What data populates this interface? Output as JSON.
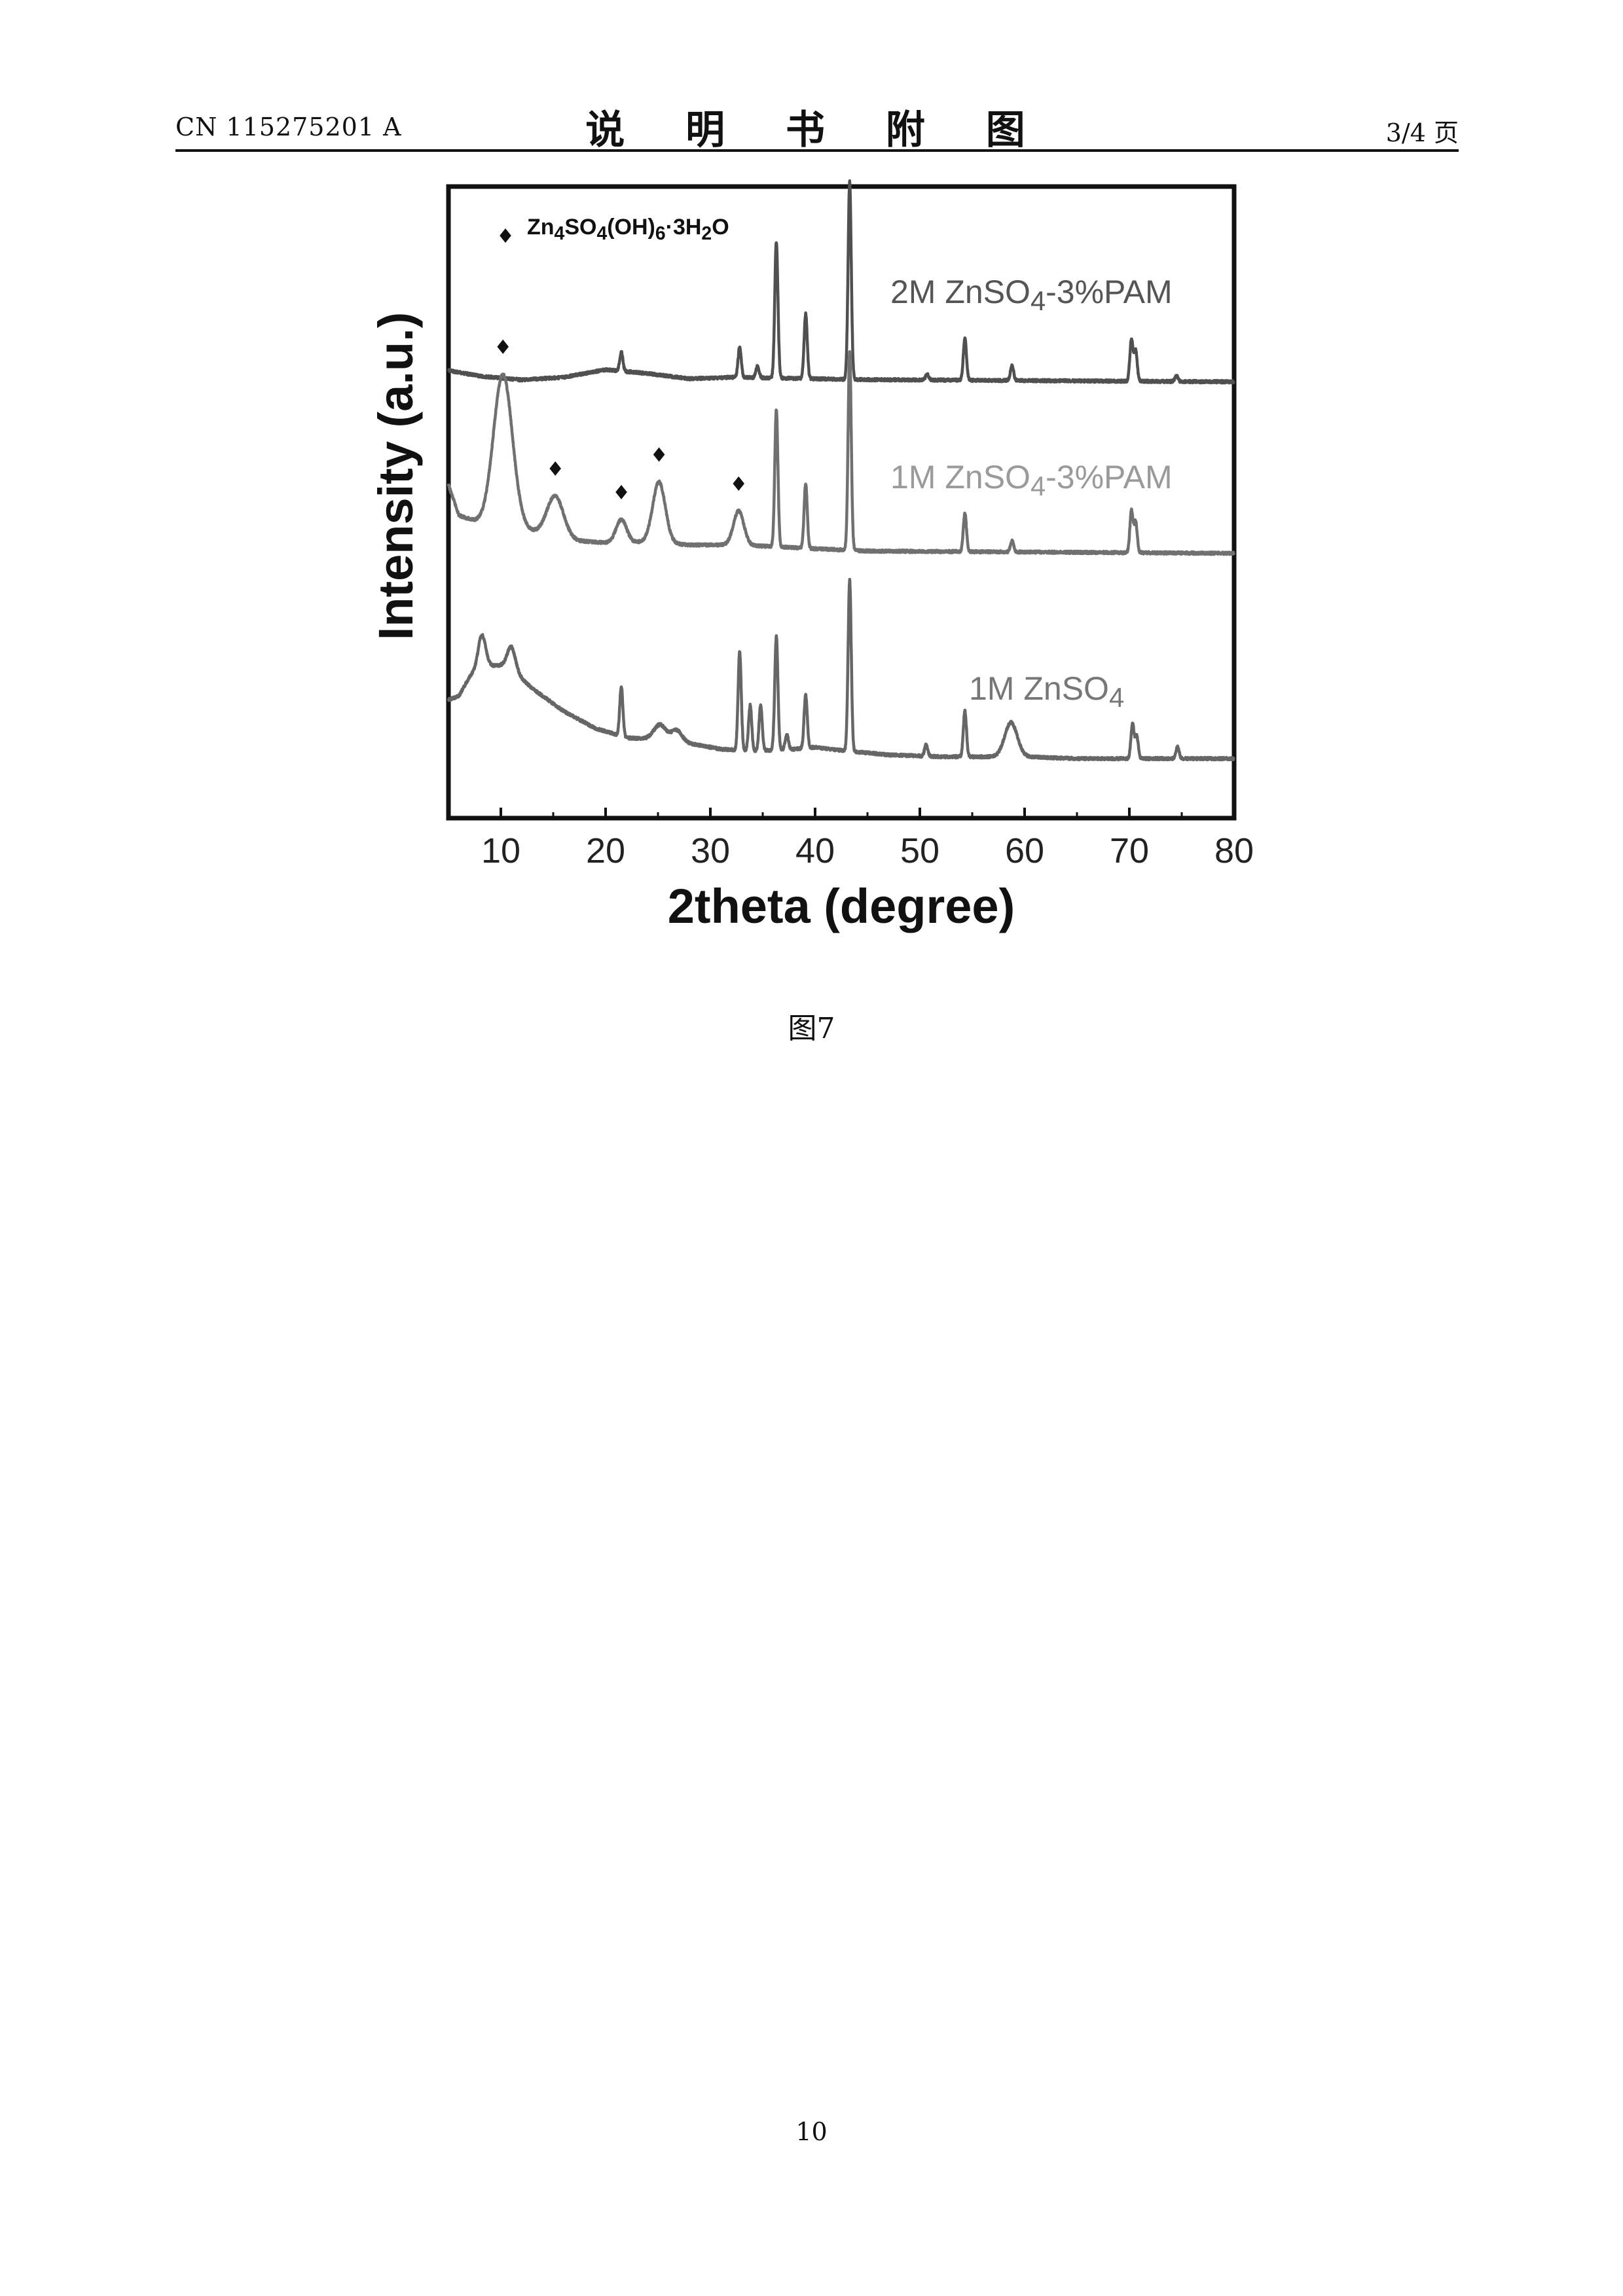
{
  "header": {
    "patent_no": "CN 115275201 A",
    "section_title": "说 明 书 附 图",
    "page_of": "3/4 页"
  },
  "figure": {
    "caption": "图7"
  },
  "footer": {
    "page_number": "10"
  },
  "chart_data": {
    "type": "line",
    "xlabel": "2theta (degree)",
    "ylabel": "Intensity (a.u.)",
    "xlim": [
      5,
      80
    ],
    "xticks": [
      10,
      20,
      30,
      40,
      50,
      60,
      70,
      80
    ],
    "yticks": [],
    "grid": false,
    "legend": {
      "placement": "top-left",
      "marker": "diamond",
      "label_html": "Zn<sub>4</sub>SO<sub>4</sub>(OH)<sub>6</sub>·3H<sub>2</sub>O"
    },
    "series": [
      {
        "name_html": "2M ZnSO<sub>4</sub>-3%PAM",
        "label_color": "#555555",
        "line_color": "#505050",
        "baseline": 0.2,
        "background": [
          [
            5,
            0.3
          ],
          [
            8,
            0.15
          ],
          [
            12,
            0.05
          ],
          [
            16,
            0.12
          ],
          [
            20,
            0.32
          ],
          [
            24,
            0.22
          ],
          [
            28,
            0.08
          ],
          [
            32,
            0.12
          ],
          [
            36,
            0.1
          ],
          [
            44,
            0.06
          ],
          [
            80,
            0
          ]
        ],
        "peaks": [
          [
            21.5,
            0.5
          ],
          [
            32.8,
            0.8
          ],
          [
            34.5,
            0.3
          ],
          [
            36.3,
            3.6
          ],
          [
            39.1,
            1.7
          ],
          [
            43.3,
            5.2
          ],
          [
            50.7,
            0.15
          ],
          [
            54.3,
            1.1
          ],
          [
            58.8,
            0.4
          ],
          [
            70.2,
            1.1
          ],
          [
            70.6,
            0.8
          ],
          [
            74.5,
            0.15
          ]
        ],
        "markers": []
      },
      {
        "name_html": "1M ZnSO<sub>4</sub>-3%PAM",
        "label_color": "#9a9a9a",
        "line_color": "#707070",
        "baseline": 0.2,
        "background": [
          [
            5,
            1.8
          ],
          [
            6,
            1.0
          ],
          [
            8,
            0.8
          ],
          [
            12,
            0.65
          ],
          [
            16,
            0.35
          ],
          [
            20,
            0.28
          ],
          [
            24,
            0.3
          ],
          [
            28,
            0.22
          ],
          [
            32,
            0.22
          ],
          [
            36,
            0.18
          ],
          [
            40,
            0.12
          ],
          [
            45,
            0.06
          ],
          [
            80,
            0
          ]
        ],
        "peaks": [
          [
            10.2,
            4.0,
            0.9
          ],
          [
            15.2,
            1.1,
            0.8
          ],
          [
            21.5,
            0.6,
            0.5
          ],
          [
            25.1,
            1.6,
            0.6
          ],
          [
            32.7,
            0.9,
            0.5
          ],
          [
            36.3,
            3.6
          ],
          [
            39.1,
            1.7
          ],
          [
            43.3,
            5.2
          ],
          [
            54.3,
            1.0
          ],
          [
            58.8,
            0.3
          ],
          [
            70.2,
            1.1
          ],
          [
            70.6,
            0.8
          ]
        ],
        "markers": [
          10.2,
          15.2,
          21.5,
          25.1,
          32.7
        ]
      },
      {
        "name_html": "1M ZnSO<sub>4</sub>",
        "label_color": "#777777",
        "line_color": "#666666",
        "baseline": 0.0,
        "background": [
          [
            5,
            1.6
          ],
          [
            6,
            1.7
          ],
          [
            7,
            2.2
          ],
          [
            8,
            2.5
          ],
          [
            10,
            2.5
          ],
          [
            11,
            2.4
          ],
          [
            13,
            1.9
          ],
          [
            16,
            1.3
          ],
          [
            19,
            0.85
          ],
          [
            22,
            0.6
          ],
          [
            25,
            0.55
          ],
          [
            28,
            0.45
          ],
          [
            31,
            0.3
          ],
          [
            34,
            0.25
          ],
          [
            38,
            0.3
          ],
          [
            40,
            0.35
          ],
          [
            43,
            0.25
          ],
          [
            47,
            0.15
          ],
          [
            52,
            0.1
          ],
          [
            55,
            0.1
          ],
          [
            58,
            0.1
          ],
          [
            60,
            0.1
          ],
          [
            65,
            0.05
          ],
          [
            80,
            0.05
          ]
        ],
        "peaks": [
          [
            8.2,
            0.8,
            0.35
          ],
          [
            11.0,
            0.6,
            0.4
          ],
          [
            21.5,
            1.3
          ],
          [
            25.2,
            0.4,
            0.6
          ],
          [
            26.8,
            0.3,
            0.5
          ],
          [
            32.8,
            2.6
          ],
          [
            33.8,
            1.2
          ],
          [
            34.8,
            1.2
          ],
          [
            36.3,
            3.0
          ],
          [
            37.3,
            0.4
          ],
          [
            39.1,
            1.4
          ],
          [
            43.3,
            4.5
          ],
          [
            50.6,
            0.3
          ],
          [
            54.3,
            1.2
          ],
          [
            58.7,
            0.9,
            0.6
          ],
          [
            70.3,
            0.9
          ],
          [
            70.7,
            0.6
          ],
          [
            74.6,
            0.3
          ]
        ],
        "markers": []
      }
    ]
  }
}
